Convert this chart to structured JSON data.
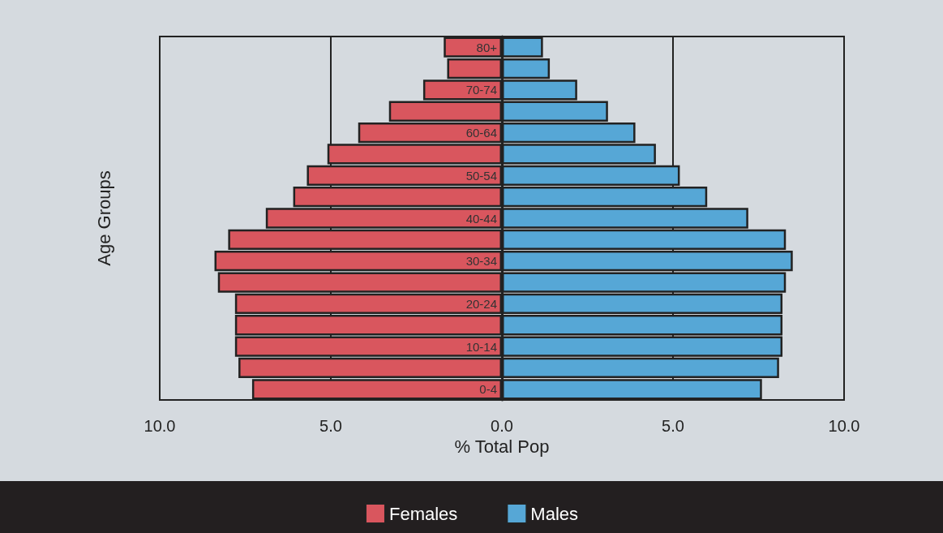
{
  "chart_data": {
    "type": "bar",
    "orientation": "horizontal",
    "stacked": true,
    "xlabel": "% Total Pop",
    "ylabel": "Age Groups",
    "categories": [
      "80+",
      null,
      "70-74",
      null,
      "60-64",
      null,
      "50-54",
      null,
      "40-44",
      null,
      "30-34",
      null,
      "20-24",
      null,
      "10-14",
      null,
      "0-4"
    ],
    "series": [
      {
        "name": "Females",
        "color": "#d9565e",
        "values": [
          -1.7,
          -1.6,
          -2.3,
          -3.3,
          -4.2,
          -5.1,
          -5.7,
          -6.1,
          -6.9,
          -8.0,
          -8.4,
          -8.3,
          -7.8,
          -7.8,
          -7.8,
          -7.7,
          -7.3
        ]
      },
      {
        "name": "Males",
        "color": "#56a7d6",
        "values": [
          1.2,
          1.4,
          2.2,
          3.1,
          3.9,
          4.5,
          5.2,
          6.0,
          7.2,
          8.3,
          8.5,
          8.3,
          8.2,
          8.2,
          8.2,
          8.1,
          7.6
        ]
      }
    ],
    "xlim": [
      -10,
      10
    ],
    "xticks": [
      {
        "value": -10,
        "label": "10.0"
      },
      {
        "value": -5,
        "label": "5.0"
      },
      {
        "value": 0,
        "label": "0.0"
      },
      {
        "value": 5,
        "label": "5.0"
      },
      {
        "value": 10,
        "label": "10.0"
      }
    ],
    "grid": "x",
    "legend": "bottom"
  }
}
